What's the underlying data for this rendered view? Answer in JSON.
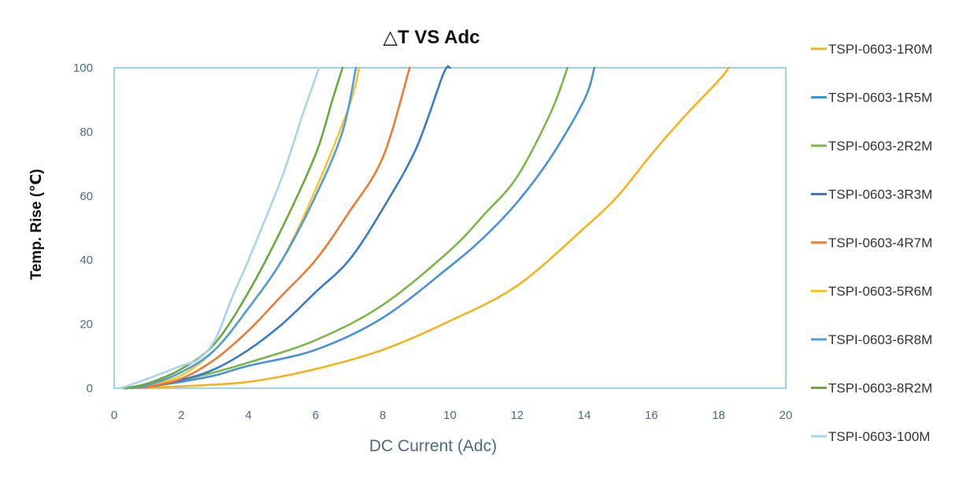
{
  "chart_data": {
    "type": "line",
    "title": "△T VS Adc",
    "xlabel": "DC Current (Adc)",
    "ylabel": "Temp. Rise (℃)",
    "xlim": [
      0,
      20
    ],
    "ylim": [
      0,
      100
    ],
    "x_ticks": [
      "0",
      "2",
      "4",
      "6",
      "8",
      "10",
      "12",
      "14",
      "16",
      "18",
      "20"
    ],
    "y_ticks": [
      "0",
      "20",
      "40",
      "60",
      "80",
      "100"
    ],
    "grid": false,
    "legend_position": "right",
    "frame_color": "#9fd3ea",
    "series": [
      {
        "name": "TSPI-0603-1R0M",
        "color": "#f5b21a",
        "points": [
          [
            0.5,
            0
          ],
          [
            2,
            0.6
          ],
          [
            4,
            2
          ],
          [
            6,
            6
          ],
          [
            8,
            12
          ],
          [
            10,
            21
          ],
          [
            12,
            32
          ],
          [
            14,
            50
          ],
          [
            15,
            60
          ],
          [
            16,
            73
          ],
          [
            17,
            85
          ],
          [
            18,
            96
          ],
          [
            18.3,
            100
          ]
        ]
      },
      {
        "name": "TSPI-0603-1R5M",
        "color": "#4a90d9",
        "points": [
          [
            0.3,
            0
          ],
          [
            1,
            0.5
          ],
          [
            2,
            2
          ],
          [
            3,
            4
          ],
          [
            4,
            7
          ],
          [
            6,
            12
          ],
          [
            8,
            22
          ],
          [
            10,
            38
          ],
          [
            11,
            47
          ],
          [
            12,
            58
          ],
          [
            13,
            72
          ],
          [
            14,
            90
          ],
          [
            14.3,
            100
          ]
        ]
      },
      {
        "name": "TSPI-0603-2R2M",
        "color": "#7ab648",
        "points": [
          [
            0.3,
            0
          ],
          [
            1,
            0.6
          ],
          [
            2,
            2.5
          ],
          [
            3,
            5
          ],
          [
            4,
            8
          ],
          [
            6,
            15
          ],
          [
            8,
            26
          ],
          [
            10,
            43
          ],
          [
            11,
            54
          ],
          [
            12,
            66
          ],
          [
            13,
            86
          ],
          [
            13.5,
            100
          ]
        ]
      },
      {
        "name": "TSPI-0603-3R3M",
        "color": "#3a78c9",
        "points": [
          [
            0.3,
            0
          ],
          [
            1,
            0.5
          ],
          [
            2,
            2.5
          ],
          [
            3,
            6
          ],
          [
            4,
            12
          ],
          [
            5,
            20
          ],
          [
            6,
            30
          ],
          [
            7,
            40
          ],
          [
            8,
            56
          ],
          [
            9,
            75
          ],
          [
            9.8,
            98
          ],
          [
            10,
            100
          ]
        ]
      },
      {
        "name": "TSPI-0603-4R7M",
        "color": "#ec7a30",
        "points": [
          [
            0.3,
            0
          ],
          [
            1,
            0.6
          ],
          [
            2,
            3
          ],
          [
            3,
            9
          ],
          [
            4,
            18
          ],
          [
            5,
            29
          ],
          [
            6,
            40
          ],
          [
            7,
            55
          ],
          [
            8,
            72
          ],
          [
            8.8,
            100
          ]
        ]
      },
      {
        "name": "TSPI-0603-5R6M",
        "color": "#f7c52c",
        "points": [
          [
            0.3,
            0
          ],
          [
            1,
            1
          ],
          [
            2,
            4
          ],
          [
            3,
            12
          ],
          [
            4,
            25
          ],
          [
            5,
            40
          ],
          [
            6,
            62
          ],
          [
            7,
            88
          ],
          [
            7.3,
            100
          ]
        ]
      },
      {
        "name": "TSPI-0603-6R8M",
        "color": "#4f9be0",
        "points": [
          [
            0.3,
            0
          ],
          [
            1,
            1
          ],
          [
            2,
            5
          ],
          [
            3,
            12
          ],
          [
            4,
            25
          ],
          [
            5,
            40
          ],
          [
            6,
            60
          ],
          [
            6.8,
            80
          ],
          [
            7.2,
            100
          ]
        ]
      },
      {
        "name": "TSPI-0603-8R2M",
        "color": "#6aaa3a",
        "points": [
          [
            0.3,
            0
          ],
          [
            1,
            1.5
          ],
          [
            2,
            6
          ],
          [
            3,
            14
          ],
          [
            4,
            30
          ],
          [
            5,
            50
          ],
          [
            6,
            73
          ],
          [
            6.5,
            90
          ],
          [
            6.8,
            100
          ]
        ]
      },
      {
        "name": "TSPI-0603-100M",
        "color": "#a7d4ec",
        "points": [
          [
            0.2,
            0
          ],
          [
            1,
            3
          ],
          [
            2,
            7
          ],
          [
            2.5,
            9
          ],
          [
            3,
            15
          ],
          [
            3.5,
            28
          ],
          [
            4,
            40
          ],
          [
            5,
            66
          ],
          [
            5.6,
            85
          ],
          [
            6.1,
            100
          ]
        ]
      }
    ]
  }
}
